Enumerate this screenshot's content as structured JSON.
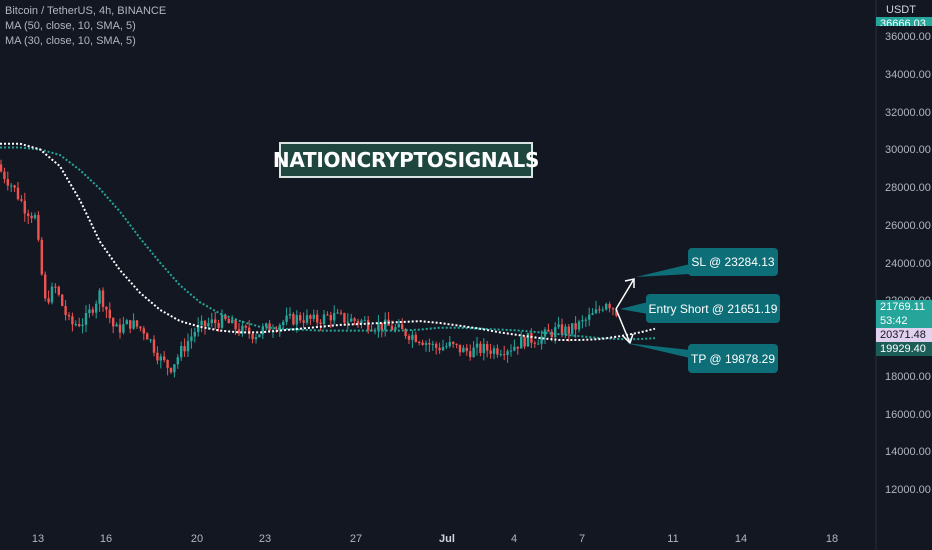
{
  "legend": {
    "symbol": "Bitcoin / TetherUS, 4h, BINANCE",
    "ma1": "MA (50, close, 10, SMA, 5)",
    "ma2": "MA (30, close, 10, SMA, 5)"
  },
  "currency": "USDT",
  "banner": "NATIONCRYPTOSIGNALS",
  "callouts": {
    "sl": "SL @ 23284.13",
    "entry": "Entry Short @ 21651.19",
    "tp": "TP @ 19878.29"
  },
  "price_scale": [
    "36000.00",
    "34000.00",
    "32000.00",
    "30000.00",
    "28000.00",
    "26000.00",
    "24000.00",
    "22000.00",
    "20000.00",
    "18000.00",
    "16000.00",
    "14000.00",
    "12000.00"
  ],
  "time_scale": [
    "13",
    "16",
    "20",
    "23",
    "27",
    "Jul",
    "4",
    "7",
    "11",
    "14",
    "18"
  ],
  "price_badges": {
    "top": "36666.03",
    "last": "21769.11",
    "countdown": "53:42",
    "ma_white": "20371.48",
    "ma_green": "19929.40"
  },
  "colors": {
    "background": "#131722",
    "up": "#26a69a",
    "down": "#ef5350",
    "ma_white": "#ffffff",
    "ma_green": "#26a69a",
    "callout": "#0e6e78"
  },
  "chart_data": {
    "type": "candlestick",
    "x_ticks": [
      "13",
      "16",
      "20",
      "23",
      "27",
      "Jul",
      "4",
      "7",
      "11",
      "14",
      "18"
    ],
    "y_range": [
      11000,
      37000
    ],
    "close_path": [
      [
        0,
        29000
      ],
      [
        12,
        28200
      ],
      [
        25,
        27000
      ],
      [
        35,
        26500
      ],
      [
        45,
        22000
      ],
      [
        55,
        22800
      ],
      [
        70,
        20800
      ],
      [
        85,
        21000
      ],
      [
        100,
        22500
      ],
      [
        115,
        20500
      ],
      [
        130,
        20900
      ],
      [
        145,
        20500
      ],
      [
        160,
        19000
      ],
      [
        170,
        18500
      ],
      [
        180,
        19300
      ],
      [
        195,
        20500
      ],
      [
        210,
        20900
      ],
      [
        225,
        21000
      ],
      [
        240,
        20500
      ],
      [
        255,
        20300
      ],
      [
        270,
        20700
      ],
      [
        285,
        21000
      ],
      [
        300,
        21200
      ],
      [
        315,
        21000
      ],
      [
        330,
        21300
      ],
      [
        345,
        21100
      ],
      [
        360,
        21000
      ],
      [
        375,
        20800
      ],
      [
        390,
        20700
      ],
      [
        405,
        20400
      ],
      [
        420,
        20100
      ],
      [
        435,
        19600
      ],
      [
        450,
        19700
      ],
      [
        465,
        19400
      ],
      [
        480,
        19500
      ],
      [
        495,
        19500
      ],
      [
        510,
        19600
      ],
      [
        525,
        20000
      ],
      [
        540,
        20100
      ],
      [
        555,
        20500
      ],
      [
        570,
        20500
      ],
      [
        585,
        21000
      ],
      [
        598,
        21500
      ],
      [
        606,
        22100
      ],
      [
        612,
        21800
      ],
      [
        618,
        21400
      ]
    ],
    "ma_white": [
      [
        0,
        30400
      ],
      [
        20,
        30400
      ],
      [
        40,
        30100
      ],
      [
        60,
        29200
      ],
      [
        80,
        27400
      ],
      [
        100,
        25200
      ],
      [
        120,
        23700
      ],
      [
        140,
        22500
      ],
      [
        160,
        21600
      ],
      [
        180,
        21000
      ],
      [
        200,
        20700
      ],
      [
        220,
        20500
      ],
      [
        240,
        20400
      ],
      [
        260,
        20400
      ],
      [
        280,
        20500
      ],
      [
        300,
        20600
      ],
      [
        320,
        20700
      ],
      [
        340,
        20800
      ],
      [
        360,
        20850
      ],
      [
        380,
        20900
      ],
      [
        400,
        20950
      ],
      [
        420,
        21000
      ],
      [
        440,
        20900
      ],
      [
        460,
        20750
      ],
      [
        480,
        20600
      ],
      [
        500,
        20400
      ],
      [
        520,
        20250
      ],
      [
        540,
        20100
      ],
      [
        560,
        20000
      ],
      [
        580,
        20000
      ],
      [
        600,
        20050
      ],
      [
        620,
        20200
      ],
      [
        640,
        20400
      ],
      [
        655,
        20600
      ]
    ],
    "ma_green": [
      [
        0,
        30200
      ],
      [
        20,
        30200
      ],
      [
        40,
        30100
      ],
      [
        60,
        29800
      ],
      [
        80,
        29000
      ],
      [
        100,
        28000
      ],
      [
        120,
        26800
      ],
      [
        140,
        25400
      ],
      [
        160,
        24100
      ],
      [
        180,
        22900
      ],
      [
        200,
        22000
      ],
      [
        220,
        21400
      ],
      [
        240,
        21000
      ],
      [
        260,
        20700
      ],
      [
        280,
        20600
      ],
      [
        300,
        20550
      ],
      [
        320,
        20500
      ],
      [
        340,
        20500
      ],
      [
        360,
        20500
      ],
      [
        380,
        20500
      ],
      [
        400,
        20500
      ],
      [
        420,
        20550
      ],
      [
        440,
        20650
      ],
      [
        460,
        20650
      ],
      [
        480,
        20600
      ],
      [
        500,
        20550
      ],
      [
        520,
        20500
      ],
      [
        540,
        20400
      ],
      [
        560,
        20300
      ],
      [
        580,
        20200
      ],
      [
        600,
        20100
      ],
      [
        620,
        20050
      ],
      [
        640,
        20050
      ],
      [
        655,
        20100
      ]
    ],
    "levels": {
      "sl": 23284.13,
      "entry": 21651.19,
      "tp": 19878.29
    }
  }
}
